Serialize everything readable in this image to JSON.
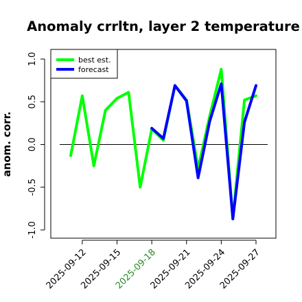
{
  "chart_data": {
    "type": "line",
    "title": "Anomaly crrltn, layer 2 temperature",
    "xlabel": "",
    "ylabel": "anom. corr.",
    "x": [
      "2025-09-11",
      "2025-09-12",
      "2025-09-13",
      "2025-09-14",
      "2025-09-15",
      "2025-09-16",
      "2025-09-17",
      "2025-09-18",
      "2025-09-19",
      "2025-09-20",
      "2025-09-21",
      "2025-09-22",
      "2025-09-23",
      "2025-09-24",
      "2025-09-25",
      "2025-09-26",
      "2025-09-27"
    ],
    "x_tick_labels": [
      "2025-09-12",
      "2025-09-15",
      "2025-09-18",
      "2025-09-21",
      "2025-09-24",
      "2025-09-27"
    ],
    "highlight_tick": "2025-09-18",
    "highlight_color": "#228B22",
    "y_ticks": [
      -1.0,
      -0.5,
      0.0,
      0.5,
      1.0
    ],
    "y_tick_labels": [
      "-1.0",
      "-0.5",
      "0.0",
      "0.5",
      "1.0"
    ],
    "ylim": [
      -1.0,
      1.0
    ],
    "reference_line": 0.0,
    "series": [
      {
        "name": "best est.",
        "color": "#00ff00",
        "values": [
          -0.13,
          0.57,
          -0.25,
          0.4,
          0.54,
          0.61,
          -0.5,
          0.18,
          0.05,
          0.69,
          0.52,
          -0.28,
          0.33,
          0.88,
          -0.87,
          0.52,
          0.57
        ]
      },
      {
        "name": "forecast",
        "color": "#0000ff",
        "values": [
          null,
          null,
          null,
          null,
          null,
          null,
          null,
          0.19,
          0.07,
          0.69,
          0.51,
          -0.39,
          0.27,
          0.71,
          -0.87,
          0.26,
          0.69
        ]
      }
    ],
    "legend_position": "top-left",
    "grid": false
  }
}
